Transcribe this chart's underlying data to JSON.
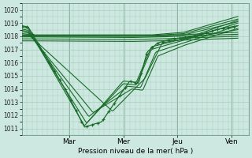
{
  "xlabel": "Pression niveau de la mer( hPa )",
  "ylim": [
    1010.5,
    1020.5
  ],
  "yticks": [
    1011,
    1012,
    1013,
    1014,
    1015,
    1016,
    1017,
    1018,
    1019,
    1020
  ],
  "bg_color": "#cce8e0",
  "grid_color": "#aaccbb",
  "line_color": "#1a6b2a",
  "day_labels": [
    "Mar",
    "Mer",
    "Jeu",
    "Ven"
  ],
  "day_positions": [
    0.22,
    0.47,
    0.72,
    0.97
  ],
  "xlim": [
    0.0,
    1.05
  ]
}
